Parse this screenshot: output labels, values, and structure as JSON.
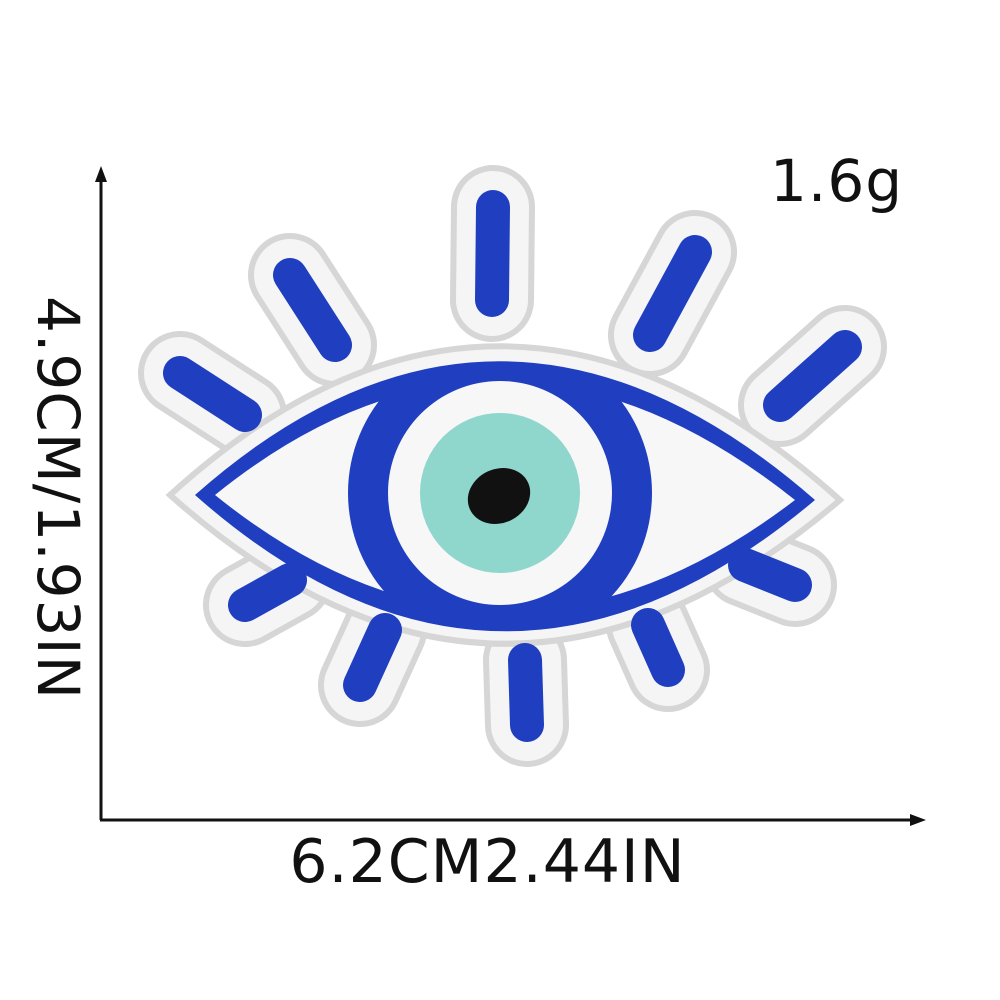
{
  "product": {
    "weight": "1.6g",
    "height_label": "4.9CM/1.93IN",
    "width_label": "6.2CM2.44IN",
    "image": {
      "subject": "evil-eye-embroidered-patch",
      "colors": {
        "blue": "#1f3fc0",
        "white": "#f4f4f4",
        "outline_shadow": "#d8d8d8",
        "iris": "#8fd6cc",
        "pupil": "#111111"
      }
    }
  },
  "dimension_lines": {
    "color": "#111111"
  }
}
